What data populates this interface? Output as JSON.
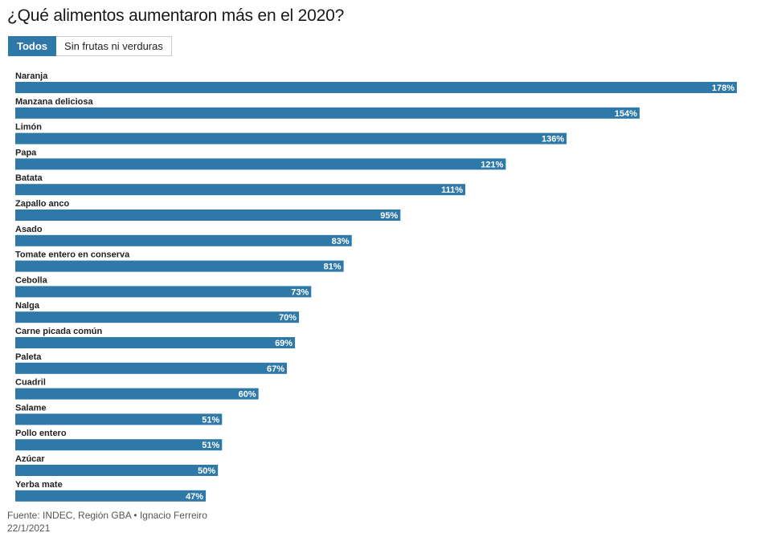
{
  "title": "¿Qué alimentos aumentaron más en el 2020?",
  "tabs": [
    {
      "label": "Todos",
      "active": true
    },
    {
      "label": "Sin frutas ni verduras",
      "active": false
    }
  ],
  "footer": {
    "source": "Fuente: INDEC, Región GBA • Ignacio Ferreiro",
    "date": "22/1/2021"
  },
  "colors": {
    "bar": "#2f79a9",
    "accent": "#2f79a9"
  },
  "chart_data": {
    "type": "bar",
    "orientation": "horizontal",
    "title": "¿Qué alimentos aumentaron más en el 2020?",
    "categories": [
      "Naranja",
      "Manzana deliciosa",
      "Limón",
      "Papa",
      "Batata",
      "Zapallo anco",
      "Asado",
      "Tomate entero en conserva",
      "Cebolla",
      "Nalga",
      "Carne picada común",
      "Paleta",
      "Cuadril",
      "Salame",
      "Pollo entero",
      "Azúcar",
      "Yerba mate"
    ],
    "values": [
      178,
      154,
      136,
      121,
      111,
      95,
      83,
      81,
      73,
      70,
      69,
      67,
      60,
      51,
      51,
      50,
      47
    ],
    "value_suffix": "%",
    "xlim": [
      0,
      178
    ],
    "grid": false,
    "legend": "none"
  }
}
